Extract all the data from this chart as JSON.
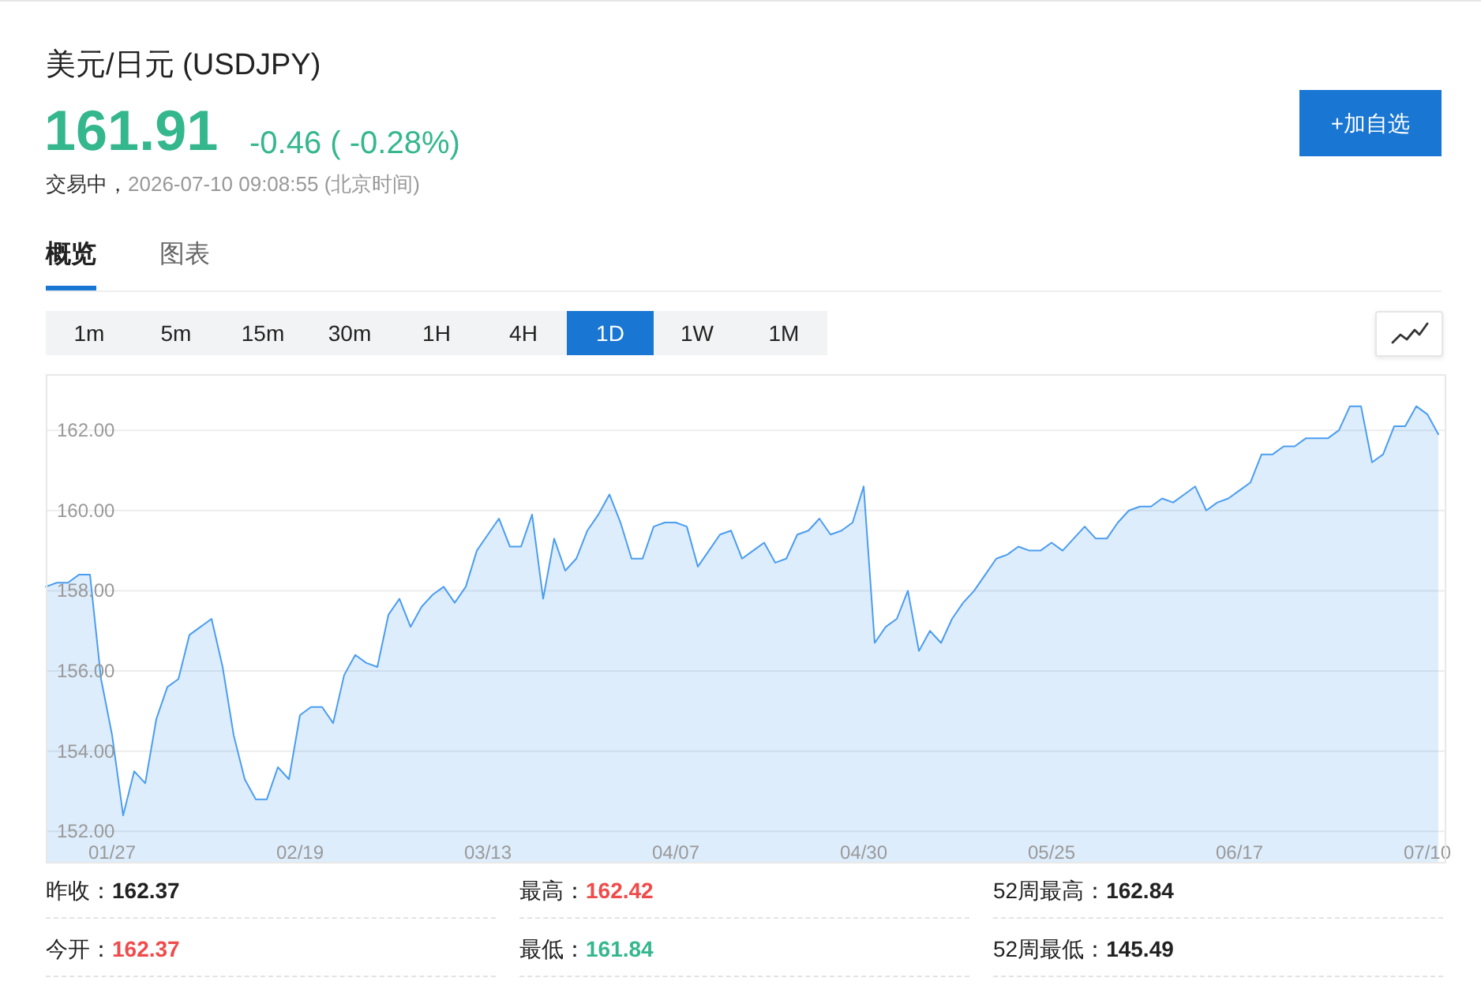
{
  "chart_data": {
    "type": "area",
    "title": "美元/日元 (USDJPY)",
    "annotations": [
      "161.91",
      "-0.46 ( -0.28%)",
      "交易中，",
      "2026-07-10 09:08:55 (北京时间)",
      "+加自选",
      "概览",
      "图表",
      "1m",
      "5m",
      "15m",
      "30m",
      "1H",
      "4H",
      "1D",
      "1W",
      "1M",
      "昨收：162.37",
      "最高：162.42",
      "52周最高：162.84",
      "今开：162.37",
      "最低：161.84",
      "52周最低：145.49"
    ],
    "categories": [
      null,
      null,
      null,
      null,
      null,
      null,
      "01/27",
      null,
      null,
      null,
      null,
      null,
      null,
      null,
      null,
      null,
      null,
      null,
      null,
      null,
      null,
      null,
      null,
      "02/19",
      null,
      null,
      null,
      null,
      null,
      null,
      null,
      null,
      null,
      null,
      null,
      null,
      null,
      null,
      null,
      null,
      "03/13",
      null,
      null,
      null,
      null,
      null,
      null,
      null,
      null,
      null,
      null,
      null,
      null,
      null,
      null,
      null,
      null,
      "04/07",
      null,
      null,
      null,
      null,
      null,
      null,
      null,
      null,
      null,
      null,
      null,
      null,
      null,
      null,
      null,
      null,
      "04/30",
      null,
      null,
      null,
      null,
      null,
      null,
      null,
      null,
      null,
      null,
      null,
      null,
      null,
      null,
      null,
      null,
      "05/25",
      null,
      null,
      null,
      null,
      null,
      null,
      null,
      null,
      null,
      null,
      null,
      null,
      null,
      null,
      null,
      null,
      "06/17",
      null,
      null,
      null,
      null,
      null,
      null,
      null,
      null,
      null,
      null,
      null,
      null,
      null,
      null,
      null,
      null,
      "07/10",
      null
    ],
    "series": [
      {
        "color": "#4a9df0",
        "values": [
          158.1,
          158.2,
          158.2,
          158.4,
          158.4,
          155.8,
          154.4,
          152.4,
          153.5,
          153.2,
          154.8,
          155.6,
          155.8,
          156.9,
          157.1,
          157.3,
          156.1,
          154.4,
          153.3,
          152.8,
          152.8,
          153.6,
          153.3,
          154.9,
          155.1,
          155.1,
          154.7,
          155.9,
          156.4,
          156.2,
          156.1,
          157.4,
          157.8,
          157.1,
          157.6,
          157.9,
          158.1,
          157.7,
          158.1,
          159.0,
          159.4,
          159.8,
          159.1,
          159.1,
          159.9,
          157.8,
          159.3,
          158.5,
          158.8,
          159.5,
          159.9,
          160.4,
          159.7,
          158.8,
          158.8,
          159.6,
          159.7,
          159.7,
          159.6,
          158.6,
          159.0,
          159.4,
          159.5,
          158.8,
          159.0,
          159.2,
          158.7,
          158.8,
          159.4,
          159.5,
          159.8,
          159.4,
          159.5,
          159.7,
          160.6,
          156.7,
          157.1,
          157.3,
          158.0,
          156.5,
          157.0,
          156.7,
          157.3,
          157.7,
          158.0,
          158.4,
          158.8,
          158.9,
          159.1,
          159.0,
          159.0,
          159.2,
          159.0,
          159.3,
          159.6,
          159.3,
          159.3,
          159.7,
          160.0,
          160.1,
          160.1,
          160.3,
          160.2,
          160.4,
          160.6,
          160.0,
          160.2,
          160.3,
          160.5,
          160.7,
          161.4,
          161.4,
          161.6,
          161.6,
          161.8,
          161.8,
          161.8,
          162.0,
          162.6,
          162.6,
          161.2,
          161.4,
          162.1,
          162.1,
          162.6,
          162.4,
          161.9
        ]
      }
    ],
    "ylim": [
      151.2,
      163.4
    ],
    "yticks": [
      {
        "value": 152,
        "label": "152.00"
      },
      {
        "value": 154,
        "label": "154.00"
      },
      {
        "value": 156,
        "label": "156.00"
      },
      {
        "value": 158,
        "label": "158.00"
      },
      {
        "value": 160,
        "label": "160.00"
      },
      {
        "value": 162,
        "label": "162.00"
      }
    ],
    "grid": "y"
  }
}
